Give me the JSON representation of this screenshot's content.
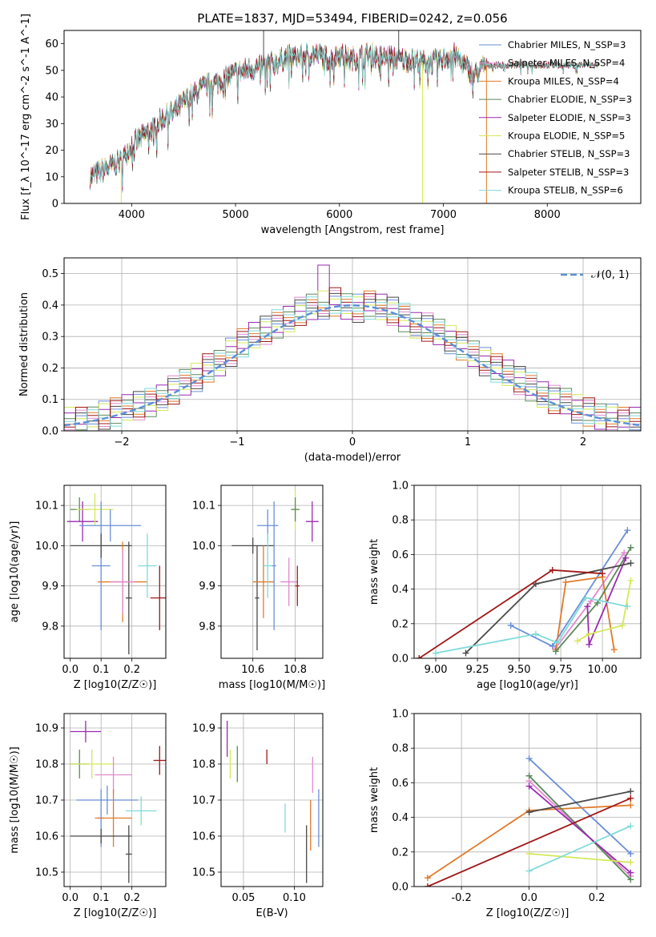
{
  "figure": {
    "title": "PLATE=1837, MJD=53494, FIBERID=0242, z=0.056"
  },
  "chart_data": [
    {
      "id": "spectrum",
      "type": "line",
      "xlabel": "wavelength [Angstrom, rest frame]",
      "ylabel": "Flux [f_λ 10^-17 erg cm^-2 s^-1 A^-1]",
      "xlim": [
        3350,
        8900
      ],
      "ylim": [
        0,
        65
      ],
      "xticks": [
        4000,
        5000,
        6000,
        7000,
        8000
      ],
      "yticks": [
        0,
        10,
        20,
        30,
        40,
        50,
        60
      ],
      "legend": "upper-right",
      "continuum": {
        "x": [
          3600,
          3700,
          3800,
          3900,
          4000,
          4100,
          4200,
          4300,
          4400,
          4500,
          4600,
          4700,
          4800,
          4900,
          5000,
          5100,
          5200,
          5300,
          5400,
          5500,
          5600,
          5700,
          5800,
          5900,
          6000,
          6100,
          6200,
          6300,
          6400,
          6500,
          6600,
          6700,
          6800,
          6900,
          7000,
          7100,
          7200,
          7300,
          7400
        ],
        "y": [
          10,
          12,
          14,
          16,
          22,
          25,
          28,
          32,
          34,
          38,
          41,
          44,
          45,
          47,
          49,
          50,
          51,
          52,
          53,
          55,
          55,
          56,
          56,
          54,
          56,
          54,
          55,
          56,
          55,
          55,
          54,
          54,
          53,
          53,
          54,
          56,
          52,
          48,
          52
        ]
      },
      "series": [
        {
          "name": "Chabrier MILES, N_SSP=3",
          "color": "#6a8fd8"
        },
        {
          "name": "Salpeter MILES, N_SSP=4",
          "color": "#e08ad0"
        },
        {
          "name": "Kroupa MILES, N_SSP=4",
          "color": "#e07a2a"
        },
        {
          "name": "Chabrier ELODIE, N_SSP=3",
          "color": "#5a8a5a"
        },
        {
          "name": "Salpeter ELODIE, N_SSP=3",
          "color": "#9a2ab0"
        },
        {
          "name": "Kroupa ELODIE, N_SSP=5",
          "color": "#d4e85a"
        },
        {
          "name": "Chabrier STELIB, N_SSP=3",
          "color": "#4a4a4a"
        },
        {
          "name": "Salpeter STELIB, N_SSP=3",
          "color": "#a01818"
        },
        {
          "name": "Kroupa STELIB, N_SSP=6",
          "color": "#80dada"
        }
      ]
    },
    {
      "id": "residuals",
      "type": "line",
      "xlabel": "(data-model)/error",
      "ylabel": "Normed distribution",
      "xlim": [
        -2.5,
        2.5
      ],
      "ylim": [
        0,
        0.55
      ],
      "xticks": [
        -2,
        -1,
        0,
        1,
        2
      ],
      "yticks": [
        0.0,
        0.1,
        0.2,
        0.3,
        0.4,
        0.5
      ],
      "legend": "upper-right",
      "gaussian_label": "𝒩(0, 1)",
      "gaussian_color": "#5b8fd6",
      "bin_width": 0.1,
      "hist_base": [
        0.03,
        0.03,
        0.04,
        0.05,
        0.06,
        0.07,
        0.08,
        0.09,
        0.11,
        0.13,
        0.15,
        0.17,
        0.2,
        0.22,
        0.25,
        0.28,
        0.3,
        0.32,
        0.34,
        0.36,
        0.38,
        0.39,
        0.4,
        0.41,
        0.4,
        0.39,
        0.4,
        0.39,
        0.38,
        0.36,
        0.34,
        0.33,
        0.31,
        0.29,
        0.27,
        0.25,
        0.22,
        0.2,
        0.18,
        0.16,
        0.14,
        0.12,
        0.1,
        0.09,
        0.07,
        0.06,
        0.05,
        0.04,
        0.03,
        0.03
      ]
    },
    {
      "id": "age_vs_Z",
      "type": "scatter",
      "xlabel": "Z [log10(Z/Z☉)]",
      "ylabel": "age  [log10(age/yr)]",
      "xlim": [
        -0.02,
        0.31
      ],
      "ylim": [
        9.72,
        10.15
      ],
      "xticks": [
        0.0,
        0.1,
        0.2
      ],
      "yticks": [
        9.8,
        9.9,
        10.0,
        10.1
      ],
      "points": [
        {
          "x": 0.03,
          "y": 10.09,
          "xerr": 0.03,
          "yerr": 0.03,
          "c": "#5a8a5a"
        },
        {
          "x": 0.04,
          "y": 10.06,
          "xerr": 0.05,
          "yerr": 0.05,
          "c": "#9a2ab0"
        },
        {
          "x": 0.08,
          "y": 10.09,
          "xerr": 0.06,
          "yerr": 0.04,
          "c": "#d4e85a"
        },
        {
          "x": 0.13,
          "y": 10.05,
          "xerr": 0.1,
          "yerr": 0.04,
          "c": "#6a8fd8"
        },
        {
          "x": 0.1,
          "y": 9.95,
          "xerr": 0.03,
          "yerr": 0.16,
          "c": "#6a8fd8"
        },
        {
          "x": 0.1,
          "y": 10.0,
          "xerr": 0.1,
          "yerr": 0.03,
          "c": "#4a4a4a"
        },
        {
          "x": 0.19,
          "y": 9.87,
          "xerr": 0.01,
          "yerr": 0.14,
          "c": "#4a4a4a"
        },
        {
          "x": 0.17,
          "y": 9.91,
          "xerr": 0.08,
          "yerr": 0.1,
          "c": "#e07a2a"
        },
        {
          "x": 0.17,
          "y": 9.91,
          "xerr": 0.04,
          "yerr": 0.08,
          "c": "#e08ad0"
        },
        {
          "x": 0.25,
          "y": 9.95,
          "xerr": 0.03,
          "yerr": 0.08,
          "c": "#80dada"
        },
        {
          "x": 0.29,
          "y": 9.87,
          "xerr": 0.03,
          "yerr": 0.08,
          "c": "#a01818"
        }
      ]
    },
    {
      "id": "age_vs_mass",
      "type": "scatter",
      "xlabel": "mass [log10(M/M☉)]",
      "xlim": [
        10.45,
        10.93
      ],
      "ylim": [
        9.72,
        10.15
      ],
      "xticks": [
        10.6,
        10.8
      ],
      "yticks": [
        9.8,
        9.9,
        10.0,
        10.1
      ],
      "points": [
        {
          "x": 10.6,
          "y": 10.0,
          "xerr": 0.1,
          "yerr": 0.02,
          "c": "#4a4a4a"
        },
        {
          "x": 10.62,
          "y": 9.87,
          "xerr": 0.01,
          "yerr": 0.13,
          "c": "#4a4a4a"
        },
        {
          "x": 10.65,
          "y": 9.91,
          "xerr": 0.05,
          "yerr": 0.09,
          "c": "#e07a2a"
        },
        {
          "x": 10.67,
          "y": 10.05,
          "xerr": 0.05,
          "yerr": 0.04,
          "c": "#6a8fd8"
        },
        {
          "x": 10.7,
          "y": 9.95,
          "xerr": 0.01,
          "yerr": 0.16,
          "c": "#6a8fd8"
        },
        {
          "x": 10.67,
          "y": 9.95,
          "xerr": 0.02,
          "yerr": 0.08,
          "c": "#80dada"
        },
        {
          "x": 10.77,
          "y": 9.91,
          "xerr": 0.04,
          "yerr": 0.06,
          "c": "#e08ad0"
        },
        {
          "x": 10.8,
          "y": 10.09,
          "xerr": 0.02,
          "yerr": 0.05,
          "c": "#d4e85a"
        },
        {
          "x": 10.8,
          "y": 10.09,
          "xerr": 0.02,
          "yerr": 0.03,
          "c": "#5a8a5a"
        },
        {
          "x": 10.81,
          "y": 9.9,
          "xerr": 0.01,
          "yerr": 0.05,
          "c": "#a01818"
        },
        {
          "x": 10.88,
          "y": 10.06,
          "xerr": 0.03,
          "yerr": 0.05,
          "c": "#9a2ab0"
        }
      ]
    },
    {
      "id": "weight_vs_age",
      "type": "line",
      "xlabel": "age  [log10(age/yr)]",
      "ylabel": "mass weight",
      "xlim": [
        8.87,
        10.23
      ],
      "ylim": [
        0,
        1.0
      ],
      "xticks": [
        9.0,
        9.25,
        9.5,
        9.75,
        10.0
      ],
      "yticks": [
        0.0,
        0.2,
        0.4,
        0.6,
        0.8,
        1.0
      ],
      "series": [
        {
          "c": "#6a8fd8",
          "x": [
            9.45,
            9.7,
            10.15
          ],
          "y": [
            0.19,
            0.07,
            0.74
          ]
        },
        {
          "c": "#e08ad0",
          "x": [
            9.72,
            9.93,
            10.13
          ],
          "y": [
            0.06,
            0.33,
            0.61
          ]
        },
        {
          "c": "#e07a2a",
          "x": [
            9.72,
            9.78,
            10.0,
            10.07
          ],
          "y": [
            0.05,
            0.44,
            0.47,
            0.05
          ]
        },
        {
          "c": "#5a8a5a",
          "x": [
            9.72,
            9.97,
            10.17
          ],
          "y": [
            0.04,
            0.32,
            0.64
          ]
        },
        {
          "c": "#9a2ab0",
          "x": [
            9.91,
            9.92,
            10.14
          ],
          "y": [
            0.3,
            0.08,
            0.58
          ]
        },
        {
          "c": "#d4e85a",
          "x": [
            9.85,
            9.92,
            10.12,
            10.17
          ],
          "y": [
            0.1,
            0.14,
            0.19,
            0.45
          ]
        },
        {
          "c": "#4a4a4a",
          "x": [
            9.18,
            9.6,
            10.17
          ],
          "y": [
            0.03,
            0.43,
            0.55
          ]
        },
        {
          "c": "#a01818",
          "x": [
            8.9,
            9.7,
            10.0
          ],
          "y": [
            0.0,
            0.51,
            0.49
          ]
        },
        {
          "c": "#80dada",
          "x": [
            9.0,
            9.6,
            9.73,
            9.9,
            10.15
          ],
          "y": [
            0.03,
            0.14,
            0.09,
            0.35,
            0.3
          ]
        }
      ]
    },
    {
      "id": "mass_vs_Z",
      "type": "scatter",
      "xlabel": "Z [log10(Z/Z☉)]",
      "ylabel": "mass [log10(M/M☉)]",
      "xlim": [
        -0.02,
        0.31
      ],
      "ylim": [
        10.46,
        10.94
      ],
      "xticks": [
        0.0,
        0.1,
        0.2
      ],
      "yticks": [
        10.5,
        10.6,
        10.7,
        10.8,
        10.9
      ],
      "points": [
        {
          "x": 0.05,
          "y": 10.89,
          "xerr": 0.05,
          "yerr": 0.03,
          "c": "#9a2ab0"
        },
        {
          "x": 0.03,
          "y": 10.8,
          "xerr": 0.03,
          "yerr": 0.04,
          "c": "#5a8a5a"
        },
        {
          "x": 0.07,
          "y": 10.8,
          "xerr": 0.07,
          "yerr": 0.04,
          "c": "#d4e85a"
        },
        {
          "x": 0.14,
          "y": 10.77,
          "xerr": 0.06,
          "yerr": 0.05,
          "c": "#e08ad0"
        },
        {
          "x": 0.29,
          "y": 10.81,
          "xerr": 0.02,
          "yerr": 0.04,
          "c": "#a01818"
        },
        {
          "x": 0.12,
          "y": 10.7,
          "xerr": 0.1,
          "yerr": 0.04,
          "c": "#6a8fd8"
        },
        {
          "x": 0.1,
          "y": 10.65,
          "xerr": 0.01,
          "yerr": 0.08,
          "c": "#6a8fd8"
        },
        {
          "x": 0.23,
          "y": 10.67,
          "xerr": 0.05,
          "yerr": 0.04,
          "c": "#80dada"
        },
        {
          "x": 0.14,
          "y": 10.65,
          "xerr": 0.06,
          "yerr": 0.08,
          "c": "#e07a2a"
        },
        {
          "x": 0.1,
          "y": 10.6,
          "xerr": 0.1,
          "yerr": 0.02,
          "c": "#4a4a4a"
        },
        {
          "x": 0.19,
          "y": 10.55,
          "xerr": 0.01,
          "yerr": 0.08,
          "c": "#4a4a4a"
        }
      ]
    },
    {
      "id": "mass_vs_ebv",
      "type": "scatter",
      "xlabel": "E(B-V)",
      "xlim": [
        0.028,
        0.128
      ],
      "ylim": [
        10.46,
        10.94
      ],
      "xticks": [
        0.05,
        0.1
      ],
      "yticks": [
        10.5,
        10.6,
        10.7,
        10.8,
        10.9
      ],
      "points": [
        {
          "x": 0.034,
          "y": 10.87,
          "xerr": 0.0,
          "yerr": 0.05,
          "c": "#9a2ab0"
        },
        {
          "x": 0.037,
          "y": 10.8,
          "xerr": 0.0,
          "yerr": 0.04,
          "c": "#d4e85a"
        },
        {
          "x": 0.044,
          "y": 10.8,
          "xerr": 0.0,
          "yerr": 0.05,
          "c": "#5a8a5a"
        },
        {
          "x": 0.073,
          "y": 10.82,
          "xerr": 0.0,
          "yerr": 0.02,
          "c": "#a01818"
        },
        {
          "x": 0.091,
          "y": 10.65,
          "xerr": 0.0,
          "yerr": 0.04,
          "c": "#80dada"
        },
        {
          "x": 0.112,
          "y": 10.55,
          "xerr": 0.0,
          "yerr": 0.08,
          "c": "#4a4a4a"
        },
        {
          "x": 0.116,
          "y": 10.63,
          "xerr": 0.0,
          "yerr": 0.07,
          "c": "#e07a2a"
        },
        {
          "x": 0.118,
          "y": 10.77,
          "xerr": 0.0,
          "yerr": 0.05,
          "c": "#e08ad0"
        },
        {
          "x": 0.124,
          "y": 10.65,
          "xerr": 0.0,
          "yerr": 0.08,
          "c": "#6a8fd8"
        }
      ]
    },
    {
      "id": "weight_vs_Z",
      "type": "line",
      "xlabel": "Z [log10(Z/Z☉)]",
      "ylabel": "mass weight",
      "xlim": [
        -0.34,
        0.33
      ],
      "ylim": [
        0,
        1.0
      ],
      "xticks": [
        -0.2,
        0.0,
        0.2
      ],
      "yticks": [
        0.0,
        0.2,
        0.4,
        0.6,
        0.8,
        1.0
      ],
      "series": [
        {
          "c": "#6a8fd8",
          "x": [
            0.0,
            0.3
          ],
          "y": [
            0.74,
            0.19
          ]
        },
        {
          "c": "#e08ad0",
          "x": [
            0.0,
            0.3
          ],
          "y": [
            0.61,
            0.06
          ]
        },
        {
          "c": "#e07a2a",
          "x": [
            -0.3,
            0.0,
            0.3
          ],
          "y": [
            0.05,
            0.44,
            0.47
          ]
        },
        {
          "c": "#5a8a5a",
          "x": [
            0.0,
            0.3
          ],
          "y": [
            0.64,
            0.04
          ]
        },
        {
          "c": "#9a2ab0",
          "x": [
            0.0,
            0.3
          ],
          "y": [
            0.58,
            0.08
          ]
        },
        {
          "c": "#d4e85a",
          "x": [
            0.0,
            0.3
          ],
          "y": [
            0.19,
            0.14
          ]
        },
        {
          "c": "#4a4a4a",
          "x": [
            0.0,
            0.3
          ],
          "y": [
            0.43,
            0.55
          ]
        },
        {
          "c": "#a01818",
          "x": [
            -0.3,
            0.3
          ],
          "y": [
            0.0,
            0.51
          ]
        },
        {
          "c": "#80dada",
          "x": [
            0.0,
            0.3
          ],
          "y": [
            0.09,
            0.35
          ]
        }
      ]
    }
  ]
}
